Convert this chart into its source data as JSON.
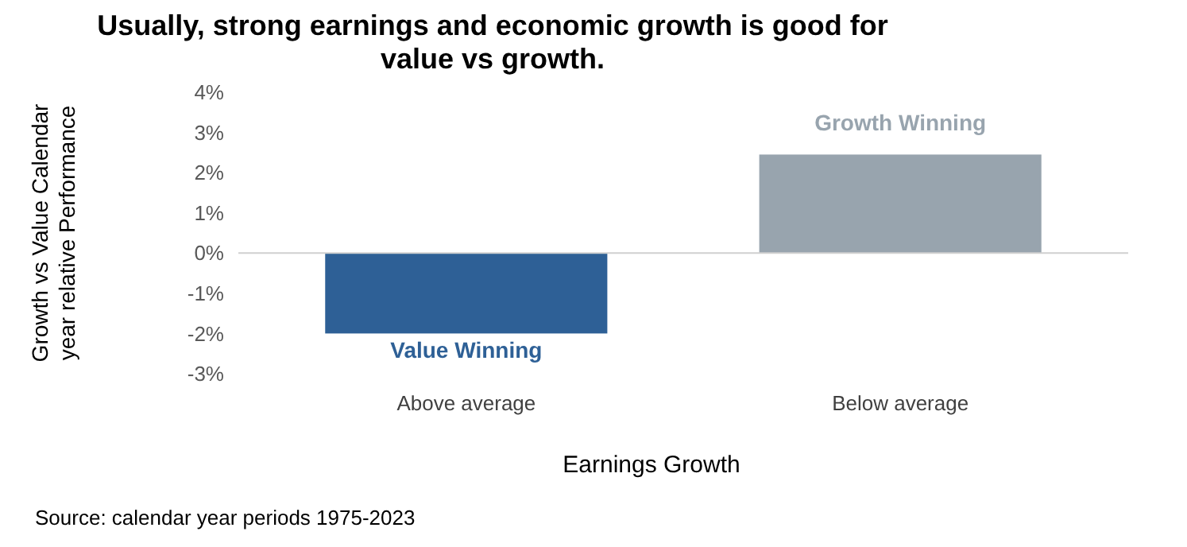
{
  "chart_data": {
    "type": "bar",
    "title": "Usually, strong earnings and economic growth is good for value vs growth.",
    "categories": [
      "Above average",
      "Below average"
    ],
    "values": [
      -2.0,
      2.45
    ],
    "colors": [
      "#2e6096",
      "#98a4ae"
    ],
    "ylim": [
      -3,
      4
    ],
    "yticks": [
      {
        "value": -3,
        "label": "-3%"
      },
      {
        "value": -2,
        "label": "-2%"
      },
      {
        "value": -1,
        "label": "-1%"
      },
      {
        "value": 0,
        "label": "0%"
      },
      {
        "value": 1,
        "label": "1%"
      },
      {
        "value": 2,
        "label": "2%"
      },
      {
        "value": 3,
        "label": "3%"
      },
      {
        "value": 4,
        "label": "4%"
      }
    ],
    "ylabel": "Growth vs Value Calendar year relative Performance",
    "xlabel": "Earnings Growth",
    "annotations": [
      "Growth Winning",
      "Value Winning",
      "Source: calendar year periods 1975-2023"
    ]
  }
}
